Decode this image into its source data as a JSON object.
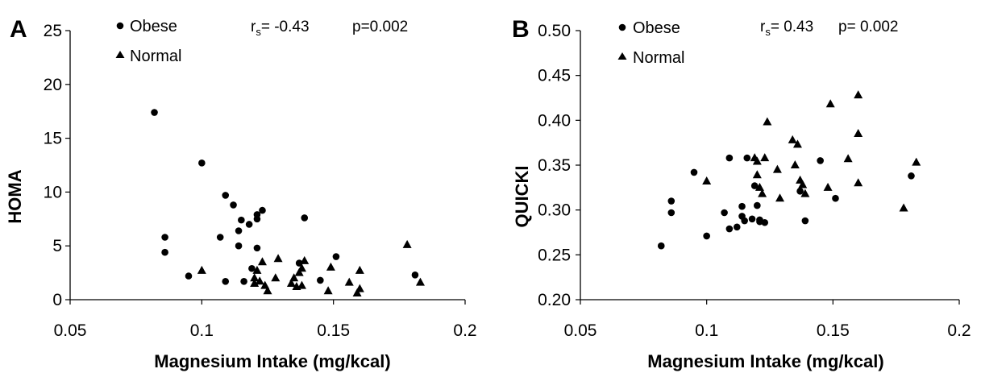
{
  "chart_data": [
    {
      "type": "scatter",
      "panel_label": "A",
      "title": "",
      "xlabel": "Magnesium Intake (mg/kcal)",
      "ylabel": "HOMA",
      "xlim": [
        0.05,
        0.2
      ],
      "ylim": [
        0,
        25
      ],
      "xticks": [
        "0.05",
        "0.1",
        "0.15",
        "0.2"
      ],
      "yticks": [
        "0",
        "5",
        "10",
        "15",
        "20",
        "25"
      ],
      "xtick_values": [
        0.05,
        0.1,
        0.15,
        0.2
      ],
      "ytick_values": [
        0,
        5,
        10,
        15,
        20,
        25
      ],
      "grid": false,
      "legend_position": "top-left",
      "stat": {
        "r_prefix": "r",
        "r_sub": "s",
        "r_rest": "= -0.43",
        "p_text": "p=0.002"
      },
      "series": [
        {
          "name": "Obese",
          "marker": "circle",
          "points": [
            [
              0.082,
              17.4
            ],
            [
              0.086,
              5.8
            ],
            [
              0.086,
              4.4
            ],
            [
              0.095,
              2.2
            ],
            [
              0.1,
              12.7
            ],
            [
              0.107,
              5.8
            ],
            [
              0.109,
              9.7
            ],
            [
              0.109,
              1.7
            ],
            [
              0.112,
              8.8
            ],
            [
              0.114,
              5.0
            ],
            [
              0.114,
              6.4
            ],
            [
              0.115,
              7.4
            ],
            [
              0.116,
              1.7
            ],
            [
              0.118,
              7.0
            ],
            [
              0.119,
              2.9
            ],
            [
              0.121,
              7.5
            ],
            [
              0.121,
              4.8
            ],
            [
              0.121,
              7.9
            ],
            [
              0.123,
              8.3
            ],
            [
              0.137,
              3.4
            ],
            [
              0.139,
              7.6
            ],
            [
              0.145,
              1.8
            ],
            [
              0.151,
              4.0
            ],
            [
              0.181,
              2.3
            ]
          ]
        },
        {
          "name": "Normal",
          "marker": "triangle",
          "points": [
            [
              0.1,
              2.7
            ],
            [
              0.12,
              2.0
            ],
            [
              0.12,
              1.5
            ],
            [
              0.121,
              2.7
            ],
            [
              0.122,
              1.7
            ],
            [
              0.123,
              3.5
            ],
            [
              0.124,
              1.3
            ],
            [
              0.125,
              0.8
            ],
            [
              0.128,
              2.0
            ],
            [
              0.129,
              3.8
            ],
            [
              0.134,
              1.5
            ],
            [
              0.135,
              2.0
            ],
            [
              0.136,
              1.2
            ],
            [
              0.137,
              2.5
            ],
            [
              0.138,
              1.3
            ],
            [
              0.138,
              2.9
            ],
            [
              0.139,
              3.6
            ],
            [
              0.148,
              0.8
            ],
            [
              0.149,
              3.0
            ],
            [
              0.156,
              1.6
            ],
            [
              0.159,
              0.6
            ],
            [
              0.16,
              1.0
            ],
            [
              0.16,
              2.7
            ],
            [
              0.178,
              5.1
            ],
            [
              0.183,
              1.6
            ]
          ]
        }
      ]
    },
    {
      "type": "scatter",
      "panel_label": "B",
      "title": "",
      "xlabel": "Magnesium Intake (mg/kcal)",
      "ylabel": "QUICKI",
      "xlim": [
        0.05,
        0.2
      ],
      "ylim": [
        0.2,
        0.5
      ],
      "xticks": [
        "0.05",
        "0.1",
        "0.15",
        "0.2"
      ],
      "yticks": [
        "0.20",
        "0.25",
        "0.30",
        "0.35",
        "0.40",
        "0.45",
        "0.50"
      ],
      "xtick_values": [
        0.05,
        0.1,
        0.15,
        0.2
      ],
      "ytick_values": [
        0.2,
        0.25,
        0.3,
        0.35,
        0.4,
        0.45,
        0.5
      ],
      "grid": false,
      "legend_position": "top-left",
      "stat": {
        "r_prefix": "r",
        "r_sub": "s",
        "r_rest": "= 0.43",
        "p_text": "p= 0.002"
      },
      "series": [
        {
          "name": "Obese",
          "marker": "circle",
          "points": [
            [
              0.082,
              0.26
            ],
            [
              0.086,
              0.297
            ],
            [
              0.086,
              0.31
            ],
            [
              0.095,
              0.342
            ],
            [
              0.1,
              0.271
            ],
            [
              0.107,
              0.297
            ],
            [
              0.109,
              0.279
            ],
            [
              0.109,
              0.358
            ],
            [
              0.112,
              0.281
            ],
            [
              0.114,
              0.304
            ],
            [
              0.114,
              0.293
            ],
            [
              0.115,
              0.288
            ],
            [
              0.116,
              0.358
            ],
            [
              0.118,
              0.29
            ],
            [
              0.119,
              0.327
            ],
            [
              0.121,
              0.287
            ],
            [
              0.12,
              0.305
            ],
            [
              0.121,
              0.289
            ],
            [
              0.123,
              0.286
            ],
            [
              0.137,
              0.321
            ],
            [
              0.139,
              0.288
            ],
            [
              0.145,
              0.355
            ],
            [
              0.151,
              0.313
            ],
            [
              0.181,
              0.338
            ]
          ]
        },
        {
          "name": "Normal",
          "marker": "triangle",
          "points": [
            [
              0.1,
              0.332
            ],
            [
              0.119,
              0.358
            ],
            [
              0.12,
              0.354
            ],
            [
              0.12,
              0.339
            ],
            [
              0.121,
              0.325
            ],
            [
              0.122,
              0.318
            ],
            [
              0.123,
              0.358
            ],
            [
              0.124,
              0.398
            ],
            [
              0.128,
              0.345
            ],
            [
              0.129,
              0.313
            ],
            [
              0.134,
              0.378
            ],
            [
              0.135,
              0.35
            ],
            [
              0.136,
              0.373
            ],
            [
              0.137,
              0.333
            ],
            [
              0.138,
              0.328
            ],
            [
              0.139,
              0.318
            ],
            [
              0.148,
              0.325
            ],
            [
              0.149,
              0.418
            ],
            [
              0.156,
              0.357
            ],
            [
              0.16,
              0.428
            ],
            [
              0.16,
              0.385
            ],
            [
              0.16,
              0.33
            ],
            [
              0.178,
              0.302
            ],
            [
              0.183,
              0.353
            ]
          ]
        }
      ]
    }
  ]
}
